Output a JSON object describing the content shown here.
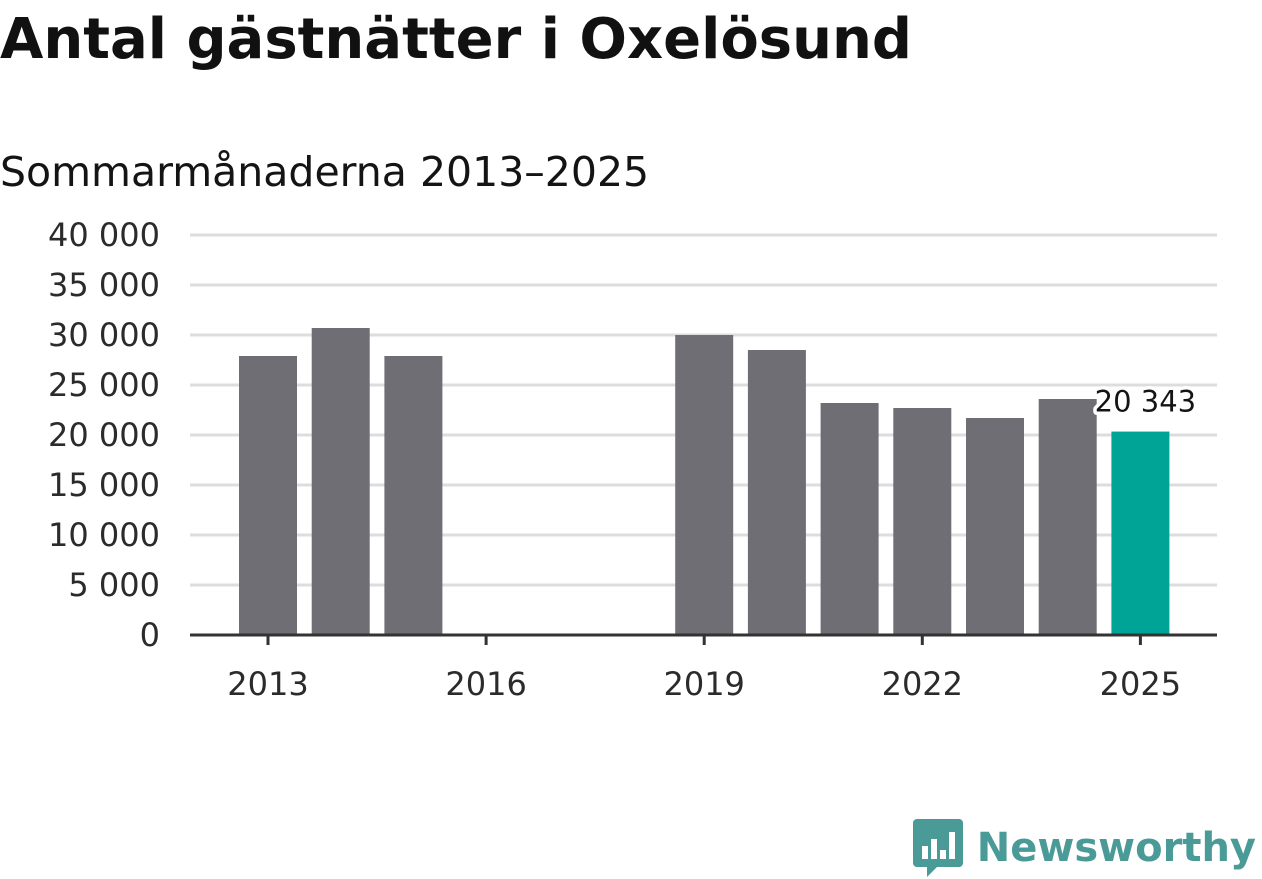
{
  "header": {
    "title": "Antal gästnätter i Oxelösund",
    "subtitle": "Sommarmånaderna 2013–2025"
  },
  "brand": {
    "name": "Newsworthy",
    "icon": "bar-chart-speech-bubble-icon",
    "color": "#4a9a97"
  },
  "colors": {
    "bar": "#6f6e74",
    "highlight": "#00a497",
    "grid": "#dddddd",
    "axis": "#333333"
  },
  "chart_data": {
    "type": "bar",
    "categories": [
      "2013",
      "2014",
      "2015",
      "2016",
      "2017",
      "2018",
      "2019",
      "2020",
      "2021",
      "2022",
      "2023",
      "2024",
      "2025"
    ],
    "values": [
      27900,
      30700,
      27900,
      null,
      null,
      null,
      30000,
      28500,
      23200,
      22700,
      21700,
      23600,
      20343
    ],
    "highlight": "2025",
    "annotations": [
      {
        "category": "2025",
        "text": "20 343"
      }
    ],
    "xticks": [
      "2013",
      "2016",
      "2019",
      "2022",
      "2025"
    ],
    "yticks": [
      "0",
      "5 000",
      "10 000",
      "15 000",
      "20 000",
      "25 000",
      "30 000",
      "35 000",
      "40 000"
    ],
    "ylim": [
      0,
      40000
    ],
    "grid": true,
    "legend": "none"
  }
}
